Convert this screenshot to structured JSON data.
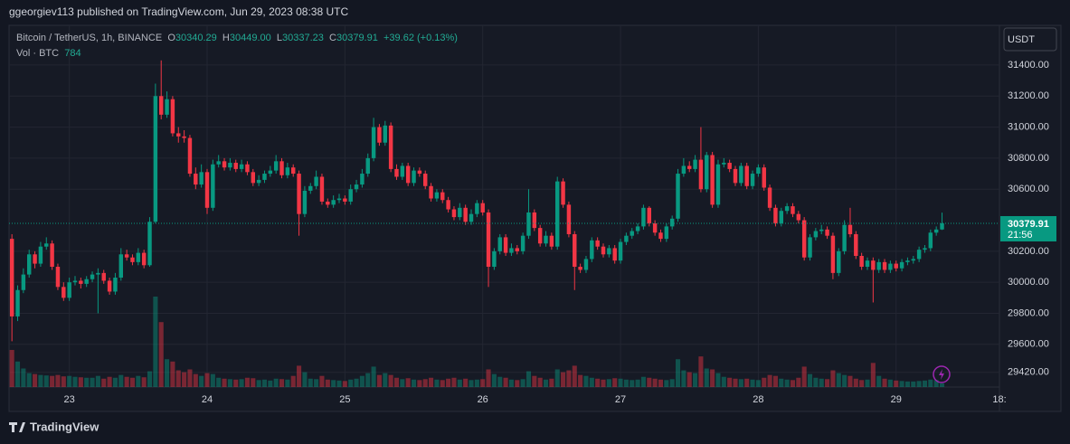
{
  "header": {
    "publisher": "ggeorgiev113 published on TradingView.com, Jun 29, 2023 08:38 UTC"
  },
  "footer": {
    "brand": "TradingView"
  },
  "chart_data": {
    "type": "candlestick",
    "title": "Bitcoin / TetherUS, 1h, BINANCE",
    "currency": "USDT",
    "legend": {
      "o": "O",
      "h": "H",
      "l": "L",
      "c": "C",
      "change": "+39.62 (+0.13%)",
      "volume_name": "Vol · BTC"
    },
    "last_labels": {
      "open": "30340.29",
      "high": "30449.00",
      "low": "30337.23",
      "close": "30379.91"
    },
    "countdown": "21:56",
    "up_color": "#089981",
    "down_color": "#f23645",
    "grid": true,
    "ylim": [
      29325,
      31656
    ],
    "yticks": [
      {
        "value": 31400,
        "label": "31400.00"
      },
      {
        "value": 31200,
        "label": "31200.00"
      },
      {
        "value": 31000,
        "label": "31000.00"
      },
      {
        "value": 30800,
        "label": "30800.00"
      },
      {
        "value": 30600,
        "label": "30600.00"
      },
      {
        "value": 30200,
        "label": "30200.00"
      },
      {
        "value": 30000,
        "label": "30000.00"
      },
      {
        "value": 29800,
        "label": "29800.00"
      },
      {
        "value": 29600,
        "label": "29600.00"
      },
      {
        "value": 29420,
        "label": "29420.00"
      }
    ],
    "xlim": [
      -0.5,
      172
    ],
    "xticks": [
      {
        "value": 10,
        "label": "23"
      },
      {
        "value": 34,
        "label": "24"
      },
      {
        "value": 58,
        "label": "25"
      },
      {
        "value": 82,
        "label": "26"
      },
      {
        "value": 106,
        "label": "27"
      },
      {
        "value": 130,
        "label": "28"
      },
      {
        "value": 154,
        "label": "29"
      },
      {
        "value": 172,
        "label": "18:"
      }
    ],
    "open": [
      30280,
      29780,
      29950,
      30050,
      30180,
      30120,
      30230,
      30250,
      30100,
      29970,
      29900,
      30000,
      30010,
      29990,
      30020,
      30050,
      30060,
      30010,
      29940,
      30030,
      30180,
      30160,
      30130,
      30190,
      30110,
      30390,
      31200,
      31080,
      31180,
      30960,
      30940,
      30930,
      30700,
      30630,
      30710,
      30480,
      30760,
      30780,
      30740,
      30770,
      30730,
      30760,
      30710,
      30640,
      30660,
      30700,
      30720,
      30780,
      30690,
      30740,
      30700,
      30440,
      30590,
      30620,
      30680,
      30520,
      30500,
      30530,
      30540,
      30520,
      30600,
      30630,
      30700,
      30800,
      31000,
      30900,
      31010,
      30730,
      30680,
      30750,
      30640,
      30720,
      30700,
      30620,
      30540,
      30580,
      30530,
      30470,
      30420,
      30480,
      30390,
      30440,
      30510,
      30450,
      30100,
      30200,
      30290,
      30190,
      30220,
      30200,
      30300,
      30450,
      30350,
      30250,
      30300,
      30230,
      30650,
      30500,
      30310,
      30100,
      30080,
      30150,
      30270,
      30230,
      30180,
      30220,
      30140,
      30260,
      30300,
      30330,
      30360,
      30480,
      30380,
      30320,
      30280,
      30360,
      30410,
      30700,
      30750,
      30730,
      30790,
      30600,
      30820,
      30500,
      30760,
      30770,
      30730,
      30640,
      30750,
      30620,
      30700,
      30740,
      30610,
      30480,
      30380,
      30460,
      30490,
      30440,
      30400,
      30160,
      30290,
      30330,
      30340,
      30300,
      30060,
      30200,
      30370,
      30310,
      30170,
      30100,
      30140,
      30080,
      30130,
      30080,
      30120,
      30090,
      30130,
      30140,
      30150,
      30210,
      30220,
      30320,
      30340.29
    ],
    "high": [
      30310,
      29980,
      30090,
      30210,
      30200,
      30260,
      30290,
      30270,
      30120,
      30000,
      30030,
      30040,
      30030,
      30040,
      30070,
      30090,
      30080,
      30030,
      30060,
      30220,
      30210,
      30180,
      30220,
      30210,
      30420,
      31280,
      31430,
      31230,
      31200,
      31000,
      30980,
      30950,
      30740,
      30760,
      30730,
      30790,
      30820,
      30800,
      30800,
      30790,
      30790,
      30780,
      30730,
      30690,
      30720,
      30750,
      30820,
      30800,
      30770,
      30760,
      30720,
      30620,
      30640,
      30720,
      30700,
      30540,
      30560,
      30570,
      30560,
      30630,
      30660,
      30730,
      30830,
      31060,
      31020,
      31040,
      31030,
      30760,
      30770,
      30770,
      30740,
      30740,
      30720,
      30640,
      30600,
      30600,
      30550,
      30490,
      30510,
      30500,
      30470,
      30530,
      30530,
      30470,
      30220,
      30310,
      30310,
      30250,
      30240,
      30320,
      30600,
      30470,
      30370,
      30330,
      30320,
      30680,
      30670,
      30520,
      30330,
      30120,
      30170,
      30290,
      30290,
      30250,
      30240,
      30240,
      30280,
      30320,
      30350,
      30380,
      30500,
      30490,
      30400,
      30340,
      30380,
      30430,
      30730,
      30800,
      30780,
      30820,
      31000,
      30840,
      30840,
      30790,
      30800,
      30790,
      30750,
      30770,
      30770,
      30720,
      30760,
      30760,
      30630,
      30500,
      30480,
      30510,
      30510,
      30460,
      30420,
      30310,
      30350,
      30370,
      30360,
      30320,
      30220,
      30400,
      30480,
      30330,
      30190,
      30160,
      30160,
      30150,
      30150,
      30140,
      30140,
      30150,
      30160,
      30170,
      30230,
      30240,
      30340,
      30360,
      30449
    ],
    "low": [
      29620,
      29750,
      29930,
      30030,
      30090,
      30100,
      30210,
      30080,
      29950,
      29880,
      29880,
      29980,
      29960,
      29970,
      30000,
      29800,
      29990,
      29920,
      29920,
      30010,
      30140,
      30110,
      30110,
      30090,
      30100,
      30380,
      31050,
      31060,
      30940,
      30900,
      30900,
      30680,
      30600,
      30610,
      30440,
      30460,
      30740,
      30720,
      30720,
      30710,
      30710,
      30690,
      30620,
      30620,
      30640,
      30680,
      30700,
      30670,
      30670,
      30680,
      30300,
      30420,
      30570,
      30600,
      30500,
      30480,
      30480,
      30510,
      30500,
      30500,
      30580,
      30610,
      30680,
      30780,
      30880,
      30880,
      30710,
      30660,
      30660,
      30620,
      30620,
      30680,
      30600,
      30520,
      30520,
      30510,
      30450,
      30400,
      30400,
      30370,
      30370,
      30420,
      30430,
      29970,
      30080,
      30180,
      30170,
      30170,
      30180,
      30180,
      30280,
      30330,
      30230,
      30230,
      30210,
      30210,
      30480,
      30290,
      29950,
      30060,
      30060,
      30130,
      30210,
      30160,
      30160,
      30120,
      30120,
      30240,
      30280,
      30310,
      30340,
      30360,
      30300,
      30260,
      30260,
      30340,
      30390,
      30680,
      30710,
      30710,
      30580,
      30580,
      30480,
      30480,
      30740,
      30710,
      30620,
      30620,
      30600,
      30600,
      30680,
      30590,
      30460,
      30360,
      30360,
      30440,
      30420,
      30380,
      30140,
      30140,
      30270,
      30310,
      30280,
      30020,
      30040,
      30180,
      30290,
      30150,
      30080,
      30080,
      29870,
      30060,
      30060,
      30060,
      30070,
      30070,
      30110,
      30120,
      30130,
      30190,
      30200,
      30300,
      30337.23
    ],
    "close": [
      29780,
      29950,
      30050,
      30180,
      30120,
      30230,
      30250,
      30100,
      29970,
      29900,
      30000,
      30010,
      29990,
      30020,
      30050,
      30060,
      30010,
      29940,
      30030,
      30180,
      30160,
      30130,
      30190,
      30110,
      30390,
      31200,
      31080,
      31180,
      30960,
      30940,
      30930,
      30700,
      30630,
      30710,
      30480,
      30760,
      30780,
      30740,
      30770,
      30730,
      30760,
      30710,
      30640,
      30660,
      30700,
      30720,
      30780,
      30690,
      30740,
      30700,
      30440,
      30590,
      30620,
      30680,
      30520,
      30500,
      30530,
      30540,
      30520,
      30600,
      30630,
      30700,
      30800,
      31000,
      30900,
      31010,
      30730,
      30680,
      30750,
      30640,
      30720,
      30700,
      30620,
      30540,
      30580,
      30530,
      30470,
      30420,
      30480,
      30390,
      30440,
      30510,
      30450,
      30100,
      30200,
      30290,
      30190,
      30220,
      30200,
      30300,
      30450,
      30350,
      30250,
      30300,
      30230,
      30650,
      30500,
      30310,
      30100,
      30080,
      30150,
      30270,
      30230,
      30180,
      30220,
      30140,
      30260,
      30300,
      30330,
      30360,
      30480,
      30380,
      30320,
      30280,
      30360,
      30410,
      30700,
      30750,
      30730,
      30790,
      30600,
      30820,
      30500,
      30760,
      30770,
      30730,
      30640,
      30750,
      30620,
      30700,
      30740,
      30610,
      30480,
      30380,
      30460,
      30490,
      30440,
      30400,
      30160,
      30290,
      30330,
      30340,
      30300,
      30060,
      30200,
      30370,
      30310,
      30170,
      30100,
      30140,
      30080,
      30130,
      30080,
      30120,
      30090,
      30130,
      30140,
      30150,
      30210,
      30220,
      30320,
      30340.29,
      30379.91
    ],
    "volume": [
      8000,
      5500,
      4000,
      3000,
      2800,
      2600,
      2500,
      2400,
      2600,
      2300,
      2400,
      2200,
      2100,
      2000,
      2000,
      2400,
      1800,
      2200,
      2000,
      2600,
      2200,
      2000,
      2400,
      2100,
      3400,
      19500,
      14000,
      6000,
      5500,
      3600,
      3200,
      3800,
      2800,
      2400,
      3000,
      2800,
      2000,
      1800,
      1700,
      1600,
      1700,
      2000,
      1900,
      1500,
      1600,
      1400,
      1800,
      1700,
      1600,
      2400,
      4600,
      3200,
      1800,
      1700,
      2400,
      1600,
      1500,
      1400,
      1300,
      1600,
      1800,
      2400,
      3000,
      4400,
      2600,
      3000,
      2600,
      2000,
      1700,
      1900,
      1600,
      1500,
      1700,
      2000,
      1600,
      1500,
      1800,
      2000,
      1600,
      1800,
      1500,
      1600,
      1700,
      3800,
      2800,
      2200,
      2000,
      1600,
      1500,
      1700,
      3400,
      2400,
      2000,
      1600,
      1800,
      3800,
      3200,
      3600,
      4600,
      2600,
      2400,
      2000,
      1800,
      1600,
      1700,
      1900,
      1800,
      1600,
      1500,
      1600,
      2200,
      2000,
      1800,
      1600,
      1500,
      1700,
      6000,
      3600,
      3200,
      3000,
      6600,
      4000,
      3800,
      3000,
      2200,
      2000,
      1800,
      1700,
      1800,
      1600,
      1500,
      2000,
      2600,
      2400,
      1800,
      1600,
      1500,
      2000,
      4400,
      2800,
      2000,
      1800,
      1700,
      3600,
      3000,
      2600,
      2400,
      1800,
      1500,
      1600,
      5200,
      2400,
      1800,
      1600,
      1400,
      1300,
      1200,
      1200,
      1300,
      1400,
      1600,
      1500,
      784
    ]
  }
}
